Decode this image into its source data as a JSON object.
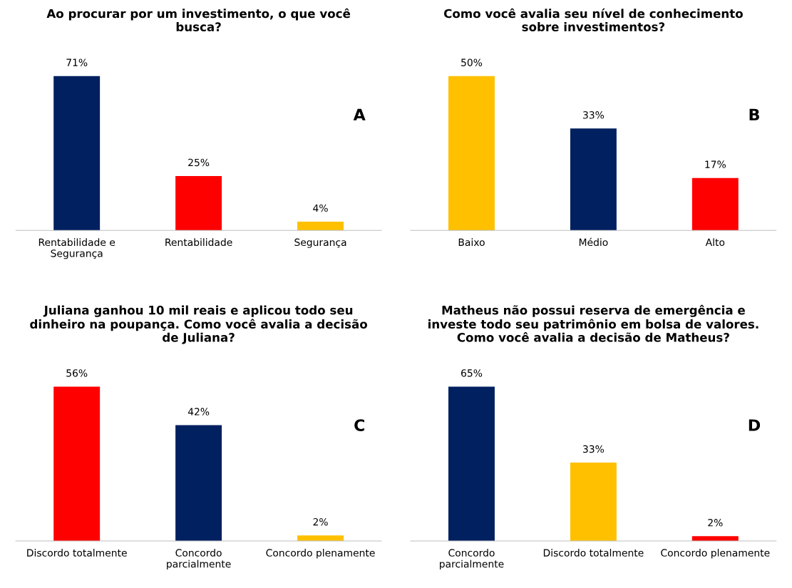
{
  "chart_data": [
    {
      "type": "bar",
      "title": "Ao procurar por um investimento, o que você\nbusca?",
      "categories": [
        "Rentabilidade e\nSegurança",
        "Rentabilidade",
        "Segurança"
      ],
      "values": [
        71,
        25,
        4
      ],
      "colors": [
        "#002060",
        "#ff0000",
        "#ffc000"
      ],
      "value_labels": [
        "71%",
        "25%",
        "4%"
      ],
      "annotations": [
        "A"
      ],
      "grid": false,
      "legend": false
    },
    {
      "type": "bar",
      "title": "Como você avalia seu nível de conhecimento\nsobre investimentos?",
      "categories": [
        "Baixo",
        "Médio",
        "Alto"
      ],
      "values": [
        50,
        33,
        17
      ],
      "colors": [
        "#ffc000",
        "#002060",
        "#ff0000"
      ],
      "value_labels": [
        "50%",
        "33%",
        "17%"
      ],
      "annotations": [
        "B"
      ],
      "grid": false,
      "legend": false
    },
    {
      "type": "bar",
      "title": "Juliana ganhou 10 mil reais e aplicou todo seu\ndinheiro na poupança. Como você avalia a decisão\nde Juliana?",
      "categories": [
        "Discordo totalmente",
        "Concordo\nparcialmente",
        "Concordo plenamente"
      ],
      "values": [
        56,
        42,
        2
      ],
      "colors": [
        "#ff0000",
        "#002060",
        "#ffc000"
      ],
      "value_labels": [
        "56%",
        "42%",
        "2%"
      ],
      "annotations": [
        "C"
      ],
      "grid": false,
      "legend": false
    },
    {
      "type": "bar",
      "title": "Matheus não possui reserva de emergência e\ninveste todo seu patrimônio em bolsa de valores.\nComo você avalia a decisão de Matheus?",
      "categories": [
        "Concordo\nparcialmente",
        "Discordo totalmente",
        "Concordo plenamente"
      ],
      "values": [
        65,
        33,
        2
      ],
      "colors": [
        "#002060",
        "#ffc000",
        "#ff0000"
      ],
      "value_labels": [
        "65%",
        "33%",
        "2%"
      ],
      "annotations": [
        "D"
      ],
      "grid": false,
      "legend": false
    }
  ]
}
